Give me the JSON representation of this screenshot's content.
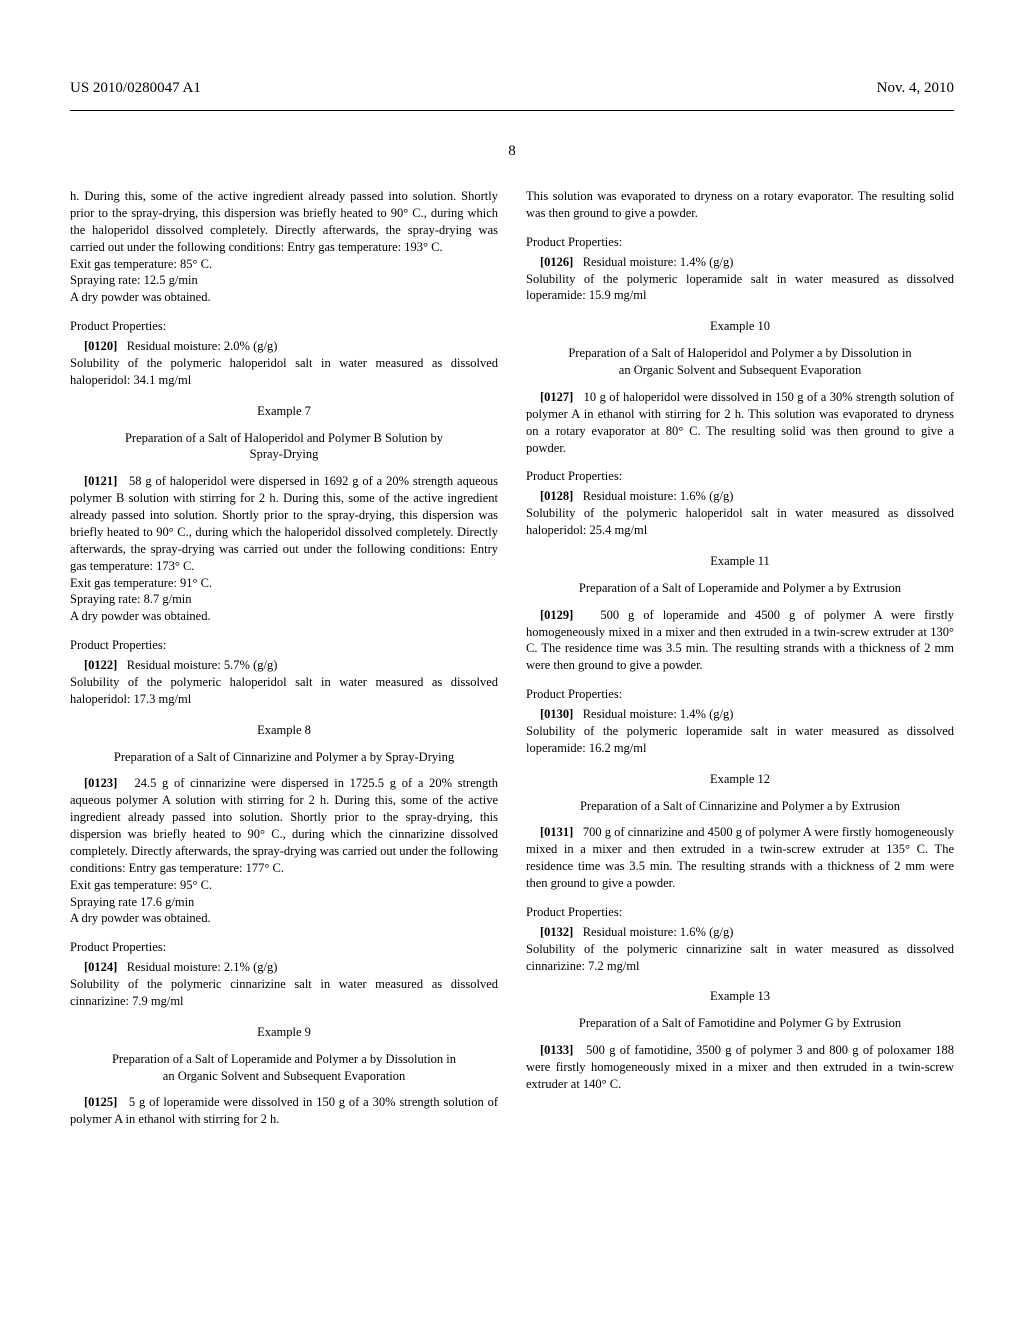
{
  "header": {
    "left": "US 2010/0280047 A1",
    "right": "Nov. 4, 2010"
  },
  "page_number": "8",
  "colors": {
    "text": "#000000",
    "background": "#ffffff"
  },
  "left_column": {
    "opening": "h. During this, some of the active ingredient already passed into solution. Shortly prior to the spray-drying, this dispersion was briefly heated to 90° C., during which the haloperidol dissolved completely. Directly afterwards, the spray-drying was carried out under the following conditions: Entry gas temperature: 193° C.",
    "lines1": [
      "Exit gas temperature: 85° C.",
      "Spraying rate: 12.5 g/min",
      "A dry powder was obtained."
    ],
    "prop_title1": "Product Properties:",
    "para_0120_num": "[0120]",
    "para_0120": "Residual moisture: 2.0% (g/g)",
    "sol1": "Solubility of the polymeric haloperidol salt in water measured as dissolved haloperidol: 34.1 mg/ml",
    "ex7_title": "Example 7",
    "ex7_sub": "Preparation of a Salt of Haloperidol and Polymer B Solution by Spray-Drying",
    "para_0121_num": "[0121]",
    "para_0121": "58 g of haloperidol were dispersed in 1692 g of a 20% strength aqueous polymer B solution with stirring for 2 h. During this, some of the active ingredient already passed into solution. Shortly prior to the spray-drying, this dispersion was briefly heated to 90° C., during which the haloperidol dissolved completely. Directly afterwards, the spray-drying was carried out under the following conditions: Entry gas temperature: 173° C.",
    "lines2": [
      "Exit gas temperature: 91° C.",
      "Spraying rate: 8.7 g/min",
      "A dry powder was obtained."
    ],
    "prop_title2": "Product Properties:",
    "para_0122_num": "[0122]",
    "para_0122": "Residual moisture: 5.7% (g/g)",
    "sol2": "Solubility of the polymeric haloperidol salt in water measured as dissolved haloperidol: 17.3 mg/ml",
    "ex8_title": "Example 8",
    "ex8_sub": "Preparation of a Salt of Cinnarizine and Polymer a by Spray-Drying",
    "para_0123_num": "[0123]",
    "para_0123": "24.5 g of cinnarizine were dispersed in 1725.5 g of a 20% strength aqueous polymer A solution with stirring for 2 h. During this, some of the active ingredient already passed into solution. Shortly prior to the spray-drying, this dispersion was briefly heated to 90° C., during which the cinnarizine dissolved completely. Directly afterwards, the spray-drying was carried out under the following conditions: Entry gas temperature: 177° C.",
    "lines3": [
      "Exit gas temperature: 95° C.",
      "Spraying rate 17.6 g/min",
      "A dry powder was obtained."
    ],
    "prop_title3": "Product Properties:",
    "para_0124_num": "[0124]",
    "para_0124": "Residual moisture: 2.1% (g/g)",
    "sol3": "Solubility of the polymeric cinnarizine salt in water measured as dissolved cinnarizine: 7.9 mg/ml",
    "ex9_title": "Example 9",
    "ex9_sub": "Preparation of a Salt of Loperamide and Polymer a by Dissolution in an Organic Solvent and Subsequent Evaporation",
    "para_0125_num": "[0125]",
    "para_0125": "5 g of loperamide were dissolved in 150 g of a 30% strength solution of polymer A in ethanol with stirring for 2 h."
  },
  "right_column": {
    "opening": "This solution was evaporated to dryness on a rotary evaporator. The resulting solid was then ground to give a powder.",
    "prop_title1": "Product Properties:",
    "para_0126_num": "[0126]",
    "para_0126": "Residual moisture: 1.4% (g/g)",
    "sol1": "Solubility of the polymeric loperamide salt in water measured as dissolved loperamide: 15.9 mg/ml",
    "ex10_title": "Example 10",
    "ex10_sub": "Preparation of a Salt of Haloperidol and Polymer a by Dissolution in an Organic Solvent and Subsequent Evaporation",
    "para_0127_num": "[0127]",
    "para_0127": "10 g of haloperidol were dissolved in 150 g of a 30% strength solution of polymer A in ethanol with stirring for 2 h. This solution was evaporated to dryness on a rotary evaporator at 80° C. The resulting solid was then ground to give a powder.",
    "prop_title2": "Product Properties:",
    "para_0128_num": "[0128]",
    "para_0128": "Residual moisture: 1.6% (g/g)",
    "sol2": "Solubility of the polymeric haloperidol salt in water measured as dissolved haloperidol: 25.4 mg/ml",
    "ex11_title": "Example 11",
    "ex11_sub": "Preparation of a Salt of Loperamide and Polymer a by Extrusion",
    "para_0129_num": "[0129]",
    "para_0129": "500 g of loperamide and 4500 g of polymer A were firstly homogeneously mixed in a mixer and then extruded in a twin-screw extruder at 130° C. The residence time was 3.5 min. The resulting strands with a thickness of 2 mm were then ground to give a powder.",
    "prop_title3": "Product Properties:",
    "para_0130_num": "[0130]",
    "para_0130": "Residual moisture: 1.4% (g/g)",
    "sol3": "Solubility of the polymeric loperamide salt in water measured as dissolved loperamide: 16.2 mg/ml",
    "ex12_title": "Example 12",
    "ex12_sub": "Preparation of a Salt of Cinnarizine and Polymer a by Extrusion",
    "para_0131_num": "[0131]",
    "para_0131": "700 g of cinnarizine and 4500 g of polymer A were firstly homogeneously mixed in a mixer and then extruded in a twin-screw extruder at 135° C. The residence time was 3.5 min. The resulting strands with a thickness of 2 mm were then ground to give a powder.",
    "prop_title4": "Product Properties:",
    "para_0132_num": "[0132]",
    "para_0132": "Residual moisture: 1.6% (g/g)",
    "sol4": "Solubility of the polymeric cinnarizine salt in water measured as dissolved cinnarizine: 7.2 mg/ml",
    "ex13_title": "Example 13",
    "ex13_sub": "Preparation of a Salt of Famotidine and Polymer G by Extrusion",
    "para_0133_num": "[0133]",
    "para_0133": "500 g of famotidine, 3500 g of polymer 3 and 800 g of poloxamer 188 were firstly homogeneously mixed in a mixer and then extruded in a twin-screw extruder at 140° C."
  }
}
